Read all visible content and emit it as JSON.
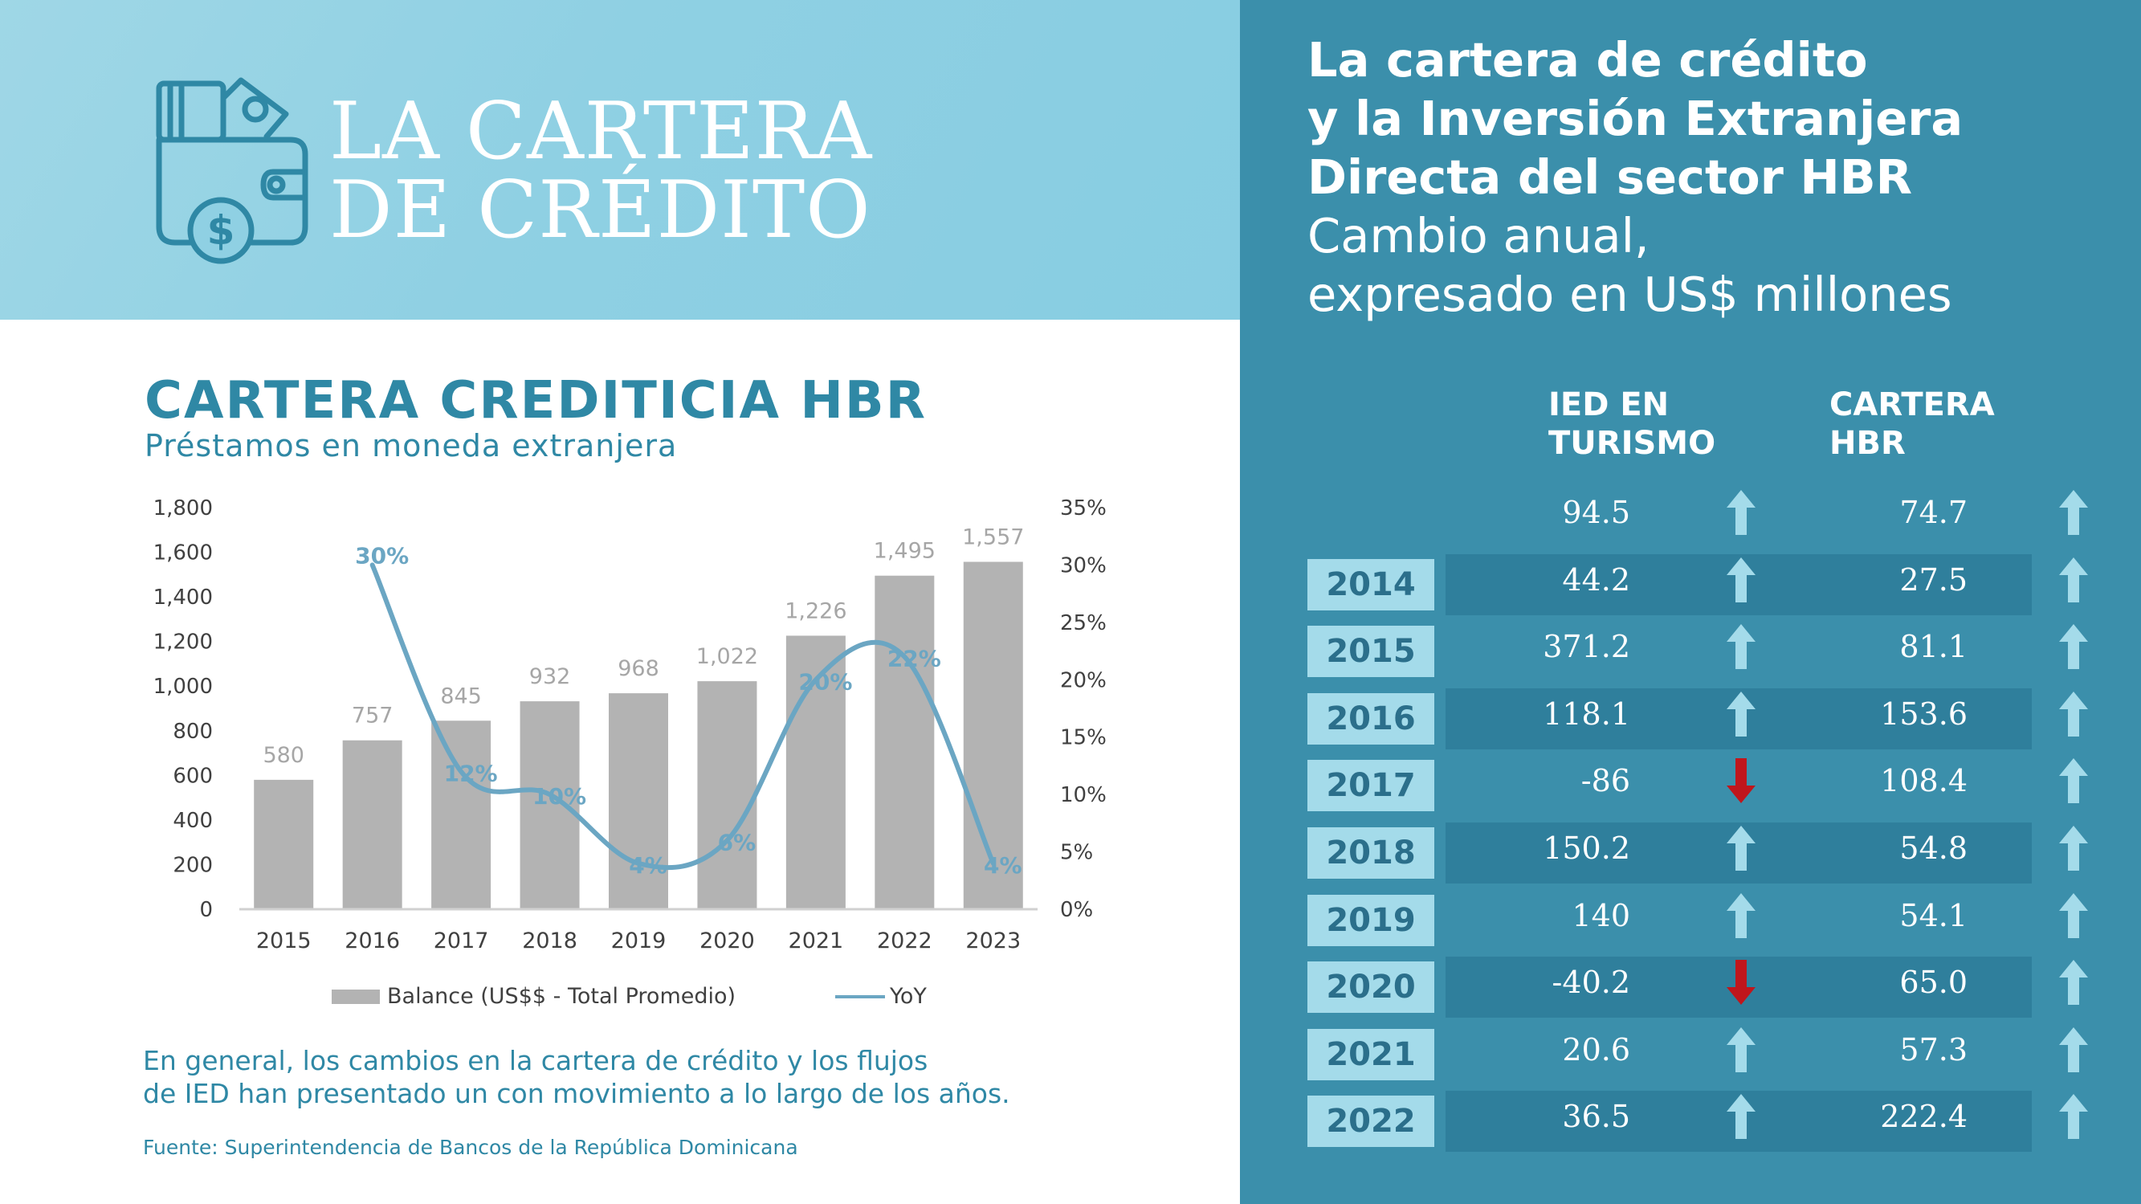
{
  "header": {
    "title_line1": "LA CARTERA",
    "title_line2": "DE CRÉDITO"
  },
  "left": {
    "heading": "CARTERA CREDITICIA HBR",
    "subheading": "Préstamos en moneda extranjera",
    "commentary_line1": "En general, los cambios en la cartera de crédito y los flujos",
    "commentary_line2": "de IED han presentado un con movimiento a lo largo de los años.",
    "source": "Fuente: Superintendencia de Bancos de la República Dominicana"
  },
  "chart_data": {
    "type": "bar",
    "title": "CARTERA CREDITICIA HBR",
    "subtitle": "Préstamos en moneda extranjera",
    "categories": [
      "2015",
      "2016",
      "2017",
      "2018",
      "2019",
      "2020",
      "2021",
      "2022",
      "2023"
    ],
    "series": [
      {
        "name": "Balance (US$$ - Total Promedio)",
        "type": "bar",
        "axis": "left",
        "values": [
          580,
          757,
          845,
          932,
          968,
          1022,
          1226,
          1495,
          1557
        ],
        "labels": [
          "580",
          "757",
          "845",
          "932",
          "968",
          "1,022",
          "1,226",
          "1,495",
          "1,557"
        ]
      },
      {
        "name": "YoY",
        "type": "line",
        "axis": "right",
        "values": [
          null,
          30,
          12,
          10,
          4,
          6,
          20,
          22,
          4
        ],
        "labels": [
          "",
          "30%",
          "12%",
          "10%",
          "4%",
          "6%",
          "20%",
          "22%",
          "4%"
        ]
      }
    ],
    "y_left": {
      "min": 0,
      "max": 1800,
      "ticks": [
        "0",
        "200",
        "400",
        "600",
        "800",
        "1,000",
        "1,200",
        "1,400",
        "1,600",
        "1,800"
      ]
    },
    "y_right": {
      "min": 0,
      "max": 35,
      "ticks": [
        "0%",
        "5%",
        "10%",
        "15%",
        "20%",
        "25%",
        "30%",
        "35%"
      ]
    },
    "legend": [
      "Balance (US$$ - Total Promedio)",
      "YoY"
    ],
    "legend_position": "bottom",
    "colors": {
      "bar": "#b3b3b3",
      "line": "#6ba6c3",
      "bar_label": "#a6a6a6",
      "line_label": "#6ba6c3",
      "axis_text": "#404040"
    }
  },
  "right": {
    "title_bold": [
      "La cartera de crédito",
      "y la Inversión Extranjera",
      "Directa del sector HBR"
    ],
    "title_normal": [
      "Cambio anual,",
      "expresado en US$ millones"
    ],
    "col_ied": [
      "IED EN",
      "TURISMO"
    ],
    "col_cartera": [
      "CARTERA",
      "HBR"
    ],
    "rows": [
      {
        "year": "",
        "ied": "94.5",
        "ied_dir": "up",
        "cartera": "74.7",
        "cartera_dir": "up"
      },
      {
        "year": "2014",
        "ied": "44.2",
        "ied_dir": "up",
        "cartera": "27.5",
        "cartera_dir": "up"
      },
      {
        "year": "2015",
        "ied": "371.2",
        "ied_dir": "up",
        "cartera": "81.1",
        "cartera_dir": "up"
      },
      {
        "year": "2016",
        "ied": "118.1",
        "ied_dir": "up",
        "cartera": "153.6",
        "cartera_dir": "up"
      },
      {
        "year": "2017",
        "ied": "-86",
        "ied_dir": "down",
        "cartera": "108.4",
        "cartera_dir": "up"
      },
      {
        "year": "2018",
        "ied": "150.2",
        "ied_dir": "up",
        "cartera": "54.8",
        "cartera_dir": "up"
      },
      {
        "year": "2019",
        "ied": "140",
        "ied_dir": "up",
        "cartera": "54.1",
        "cartera_dir": "up"
      },
      {
        "year": "2020",
        "ied": "-40.2",
        "ied_dir": "down",
        "cartera": "65.0",
        "cartera_dir": "up"
      },
      {
        "year": "2021",
        "ied": "20.6",
        "ied_dir": "up",
        "cartera": "57.3",
        "cartera_dir": "up"
      },
      {
        "year": "2022",
        "ied": "36.5",
        "ied_dir": "up",
        "cartera": "222.4",
        "cartera_dir": "up"
      }
    ],
    "colors": {
      "panel": "#3b8fab",
      "band_dark": "#2f7f9c",
      "year_box": "#a4dbea",
      "arrow_up": "#a4dbea",
      "arrow_down": "#c0161c"
    }
  }
}
